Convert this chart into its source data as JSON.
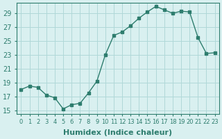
{
  "x": [
    0,
    1,
    2,
    3,
    4,
    5,
    6,
    7,
    8,
    9,
    10,
    11,
    12,
    13,
    14,
    15,
    16,
    17,
    18,
    19,
    20,
    21,
    22,
    23
  ],
  "y": [
    18.0,
    18.5,
    18.3,
    17.2,
    16.8,
    15.2,
    15.8,
    16.0,
    17.5,
    19.2,
    23.0,
    25.8,
    26.3,
    27.2,
    28.3,
    29.2,
    30.0,
    29.5,
    29.0,
    29.3,
    29.2,
    25.5,
    23.2,
    23.3
  ],
  "xlabel": "Humidex (Indice chaleur)",
  "xlim": [
    -0.5,
    23.5
  ],
  "ylim": [
    14.5,
    30.5
  ],
  "yticks": [
    15,
    17,
    19,
    21,
    23,
    25,
    27,
    29
  ],
  "xtick_labels": [
    "0",
    "1",
    "2",
    "3",
    "4",
    "5",
    "6",
    "7",
    "8",
    "9",
    "10",
    "11",
    "12",
    "13",
    "14",
    "15",
    "16",
    "17",
    "18",
    "19",
    "20",
    "21",
    "22",
    "23"
  ],
  "line_color": "#2e7d6e",
  "marker_color": "#2e7d6e",
  "bg_color": "#d9f0f0",
  "grid_color": "#b0d8d8",
  "label_fontsize": 8,
  "tick_fontsize": 7
}
